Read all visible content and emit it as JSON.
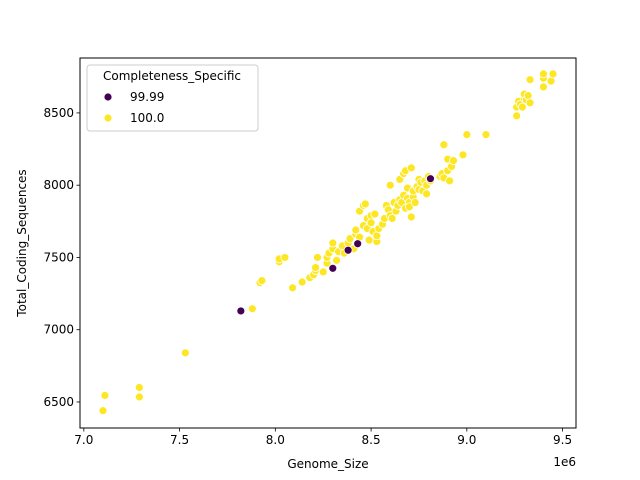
{
  "chart_data": {
    "type": "scatter",
    "xlabel": "Genome_Size",
    "ylabel": "Total_Coding_Sequences",
    "x_offset_label": "1e6",
    "xlim": [
      6.98,
      9.57
    ],
    "ylim": [
      6320,
      8880
    ],
    "x_ticks": [
      7.0,
      7.5,
      8.0,
      8.5,
      9.0,
      9.5
    ],
    "x_tick_labels": [
      "7.0",
      "7.5",
      "8.0",
      "8.5",
      "9.0",
      "9.5"
    ],
    "y_ticks": [
      6500,
      7000,
      7500,
      8000,
      8500
    ],
    "y_tick_labels": [
      "6500",
      "7000",
      "7500",
      "8000",
      "8500"
    ],
    "grid": false,
    "legend": {
      "title": "Completeness_Specific",
      "placement": "top-left",
      "entries": [
        {
          "label": "99.99",
          "color": "#440154"
        },
        {
          "label": "100.0",
          "color": "#fde725"
        }
      ]
    },
    "series": [
      {
        "name": "100.0",
        "color": "#fde725",
        "points": [
          [
            7.1,
            6440
          ],
          [
            7.11,
            6545
          ],
          [
            7.29,
            6600
          ],
          [
            7.29,
            6535
          ],
          [
            7.53,
            6840
          ],
          [
            7.88,
            7145
          ],
          [
            7.92,
            7325
          ],
          [
            7.93,
            7340
          ],
          [
            8.02,
            7470
          ],
          [
            8.02,
            7490
          ],
          [
            8.05,
            7500
          ],
          [
            8.09,
            7290
          ],
          [
            8.14,
            7330
          ],
          [
            8.18,
            7360
          ],
          [
            8.2,
            7380
          ],
          [
            8.21,
            7410
          ],
          [
            8.21,
            7430
          ],
          [
            8.22,
            7500
          ],
          [
            8.25,
            7400
          ],
          [
            8.27,
            7460
          ],
          [
            8.27,
            7500
          ],
          [
            8.28,
            7530
          ],
          [
            8.3,
            7560
          ],
          [
            8.3,
            7600
          ],
          [
            8.32,
            7480
          ],
          [
            8.33,
            7540
          ],
          [
            8.35,
            7580
          ],
          [
            8.36,
            7530
          ],
          [
            8.38,
            7600
          ],
          [
            8.39,
            7630
          ],
          [
            8.41,
            7560
          ],
          [
            8.42,
            7660
          ],
          [
            8.42,
            7690
          ],
          [
            8.44,
            7640
          ],
          [
            8.44,
            7820
          ],
          [
            8.46,
            7720
          ],
          [
            8.46,
            7860
          ],
          [
            8.47,
            7870
          ],
          [
            8.48,
            7700
          ],
          [
            8.48,
            7770
          ],
          [
            8.49,
            7620
          ],
          [
            8.5,
            7790
          ],
          [
            8.5,
            7740
          ],
          [
            8.51,
            7680
          ],
          [
            8.52,
            7800
          ],
          [
            8.53,
            7610
          ],
          [
            8.53,
            7650
          ],
          [
            8.54,
            7700
          ],
          [
            8.56,
            7730
          ],
          [
            8.57,
            7770
          ],
          [
            8.58,
            7860
          ],
          [
            8.59,
            7830
          ],
          [
            8.6,
            7790
          ],
          [
            8.6,
            8000
          ],
          [
            8.61,
            7770
          ],
          [
            8.62,
            7880
          ],
          [
            8.63,
            7820
          ],
          [
            8.64,
            7860
          ],
          [
            8.65,
            7900
          ],
          [
            8.65,
            8040
          ],
          [
            8.66,
            7880
          ],
          [
            8.67,
            7930
          ],
          [
            8.67,
            8080
          ],
          [
            8.68,
            7840
          ],
          [
            8.68,
            8100
          ],
          [
            8.69,
            7910
          ],
          [
            8.69,
            7980
          ],
          [
            8.7,
            7880
          ],
          [
            8.7,
            7850
          ],
          [
            8.71,
            8120
          ],
          [
            8.71,
            7780
          ],
          [
            8.72,
            7920
          ],
          [
            8.72,
            7960
          ],
          [
            8.73,
            7880
          ],
          [
            8.74,
            7990
          ],
          [
            8.75,
            7970
          ],
          [
            8.75,
            8040
          ],
          [
            8.76,
            8020
          ],
          [
            8.77,
            7960
          ],
          [
            8.78,
            8030
          ],
          [
            8.79,
            7940
          ],
          [
            8.79,
            8000
          ],
          [
            8.8,
            8060
          ],
          [
            8.81,
            8030
          ],
          [
            8.86,
            8060
          ],
          [
            8.87,
            8080
          ],
          [
            8.88,
            8050
          ],
          [
            8.88,
            8280
          ],
          [
            8.9,
            8100
          ],
          [
            8.9,
            8180
          ],
          [
            8.91,
            8030
          ],
          [
            8.92,
            8130
          ],
          [
            8.93,
            8170
          ],
          [
            8.98,
            8210
          ],
          [
            9.0,
            8350
          ],
          [
            9.1,
            8350
          ],
          [
            9.26,
            8480
          ],
          [
            9.26,
            8540
          ],
          [
            9.27,
            8580
          ],
          [
            9.28,
            8560
          ],
          [
            9.29,
            8540
          ],
          [
            9.3,
            8600
          ],
          [
            9.3,
            8630
          ],
          [
            9.31,
            8590
          ],
          [
            9.32,
            8620
          ],
          [
            9.33,
            8570
          ],
          [
            9.33,
            8730
          ],
          [
            9.4,
            8680
          ],
          [
            9.4,
            8740
          ],
          [
            9.4,
            8770
          ],
          [
            9.44,
            8720
          ],
          [
            9.45,
            8770
          ]
        ]
      },
      {
        "name": "99.99",
        "color": "#440154",
        "points": [
          [
            7.82,
            7130
          ],
          [
            8.3,
            7425
          ],
          [
            8.38,
            7550
          ],
          [
            8.43,
            7595
          ],
          [
            8.81,
            8045
          ]
        ]
      }
    ]
  }
}
